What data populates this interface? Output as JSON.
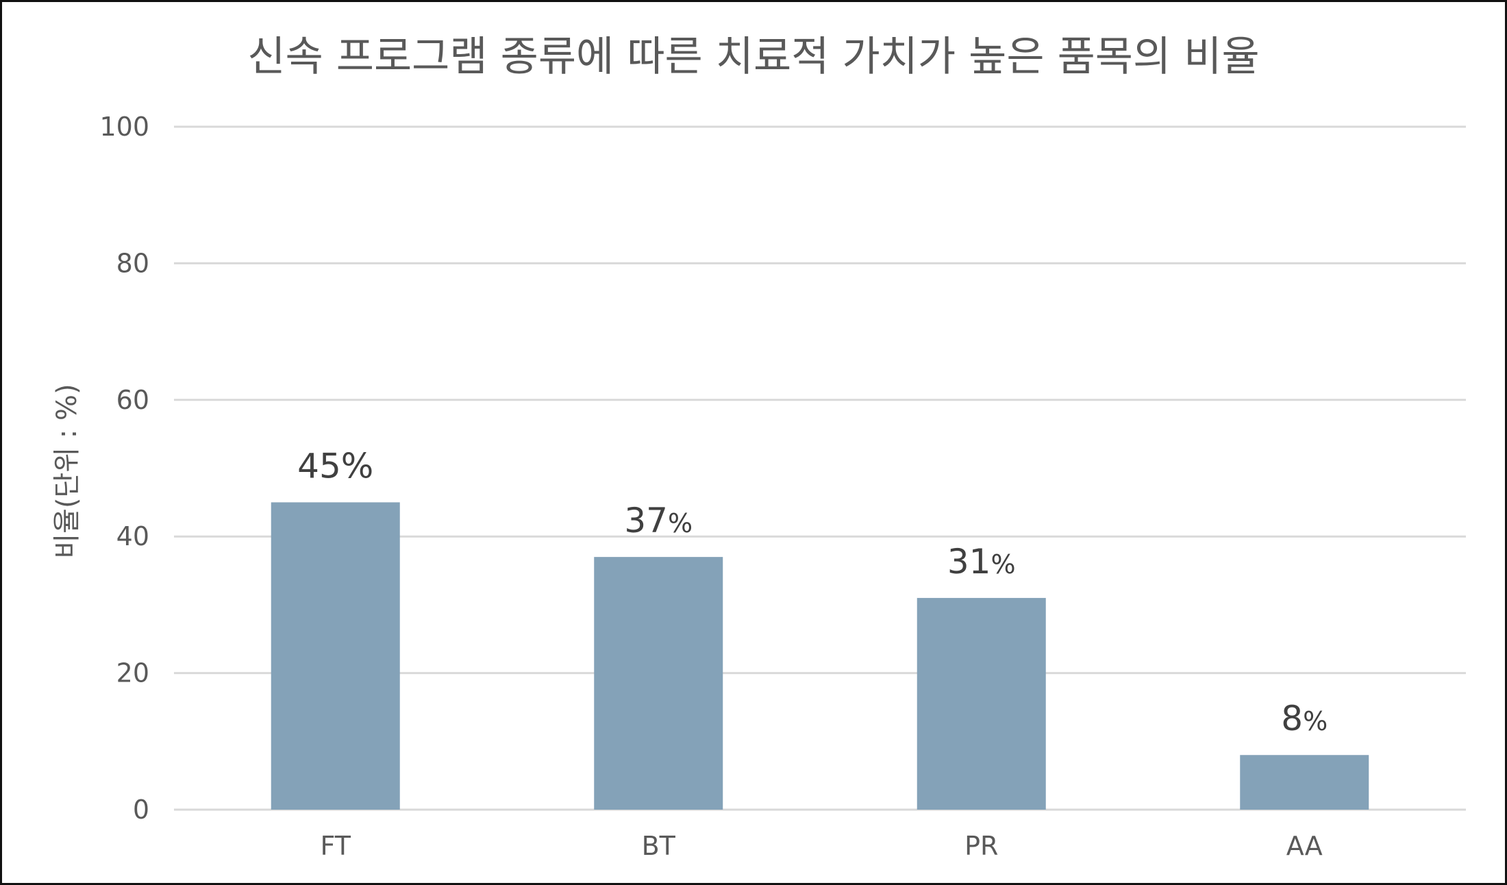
{
  "chart_data": {
    "type": "bar",
    "title": "신속 프로그램 종류에 따른 치료적 가치가 높은 품목의 비율",
    "xlabel": "",
    "ylabel": "비율(단위 : %)",
    "categories": [
      "FT",
      "BT",
      "PR",
      "AA"
    ],
    "values": [
      45,
      37,
      31,
      8
    ],
    "data_labels": [
      {
        "number": "45",
        "unit": "%",
        "unit_small": false
      },
      {
        "number": "37",
        "unit": "%",
        "unit_small": true
      },
      {
        "number": "31",
        "unit": "%",
        "unit_small": true
      },
      {
        "number": "8",
        "unit": "%",
        "unit_small": true
      }
    ],
    "ylim": [
      0,
      100
    ],
    "yticks": [
      "0",
      "20",
      "40",
      "60",
      "80",
      "100"
    ],
    "grid": true,
    "legend": "none",
    "colors": {
      "bar": "#84A2B8",
      "grid": "#D9D9D9",
      "text": "#595959",
      "data_label": "#404040"
    }
  }
}
